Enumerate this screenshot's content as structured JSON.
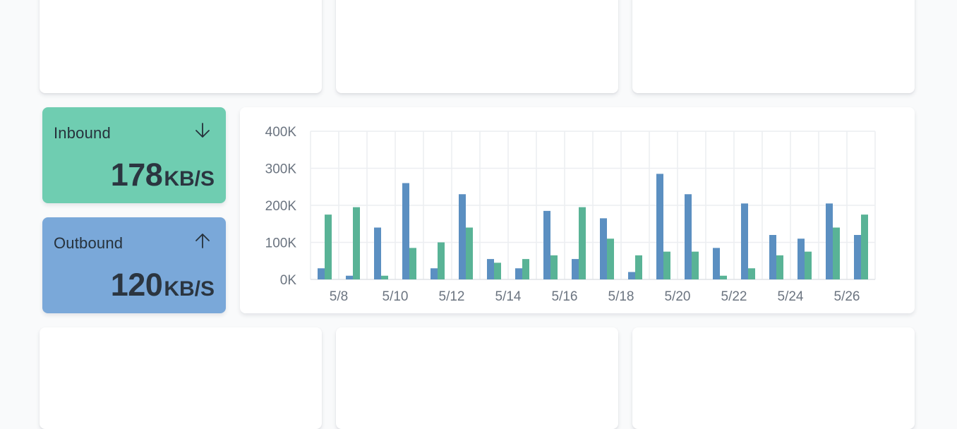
{
  "inbound": {
    "label": "Inbound",
    "value": "178",
    "unit": "KB/S",
    "color": "#6fcdb1",
    "icon": "arrow-down-icon"
  },
  "outbound": {
    "label": "Outbound",
    "value": "120",
    "unit": "KB/S",
    "color": "#7aa8d9",
    "icon": "arrow-up-icon"
  },
  "chart_data": {
    "type": "bar",
    "categories": [
      "5/7",
      "5/8",
      "5/9",
      "5/10",
      "5/11",
      "5/12",
      "5/13",
      "5/14",
      "5/15",
      "5/16",
      "5/17",
      "5/18",
      "5/19",
      "5/20",
      "5/21",
      "5/22",
      "5/23",
      "5/24",
      "5/25",
      "5/26"
    ],
    "x_tick_labels": [
      "5/8",
      "5/10",
      "5/12",
      "5/14",
      "5/16",
      "5/18",
      "5/20",
      "5/22",
      "5/24",
      "5/26"
    ],
    "y_tick_labels": [
      "0K",
      "100K",
      "200K",
      "300K",
      "400K"
    ],
    "ylim": [
      0,
      400000
    ],
    "grid": true,
    "series": [
      {
        "color": "#5b8fc1",
        "values": [
          30000,
          10000,
          140000,
          260000,
          30000,
          230000,
          55000,
          30000,
          185000,
          55000,
          165000,
          20000,
          285000,
          230000,
          85000,
          205000,
          120000,
          110000,
          205000,
          120000
        ]
      },
      {
        "color": "#59b396",
        "values": [
          175000,
          195000,
          10000,
          85000,
          100000,
          140000,
          45000,
          55000,
          65000,
          195000,
          110000,
          65000,
          75000,
          75000,
          10000,
          30000,
          65000,
          75000,
          140000,
          175000
        ]
      }
    ]
  }
}
